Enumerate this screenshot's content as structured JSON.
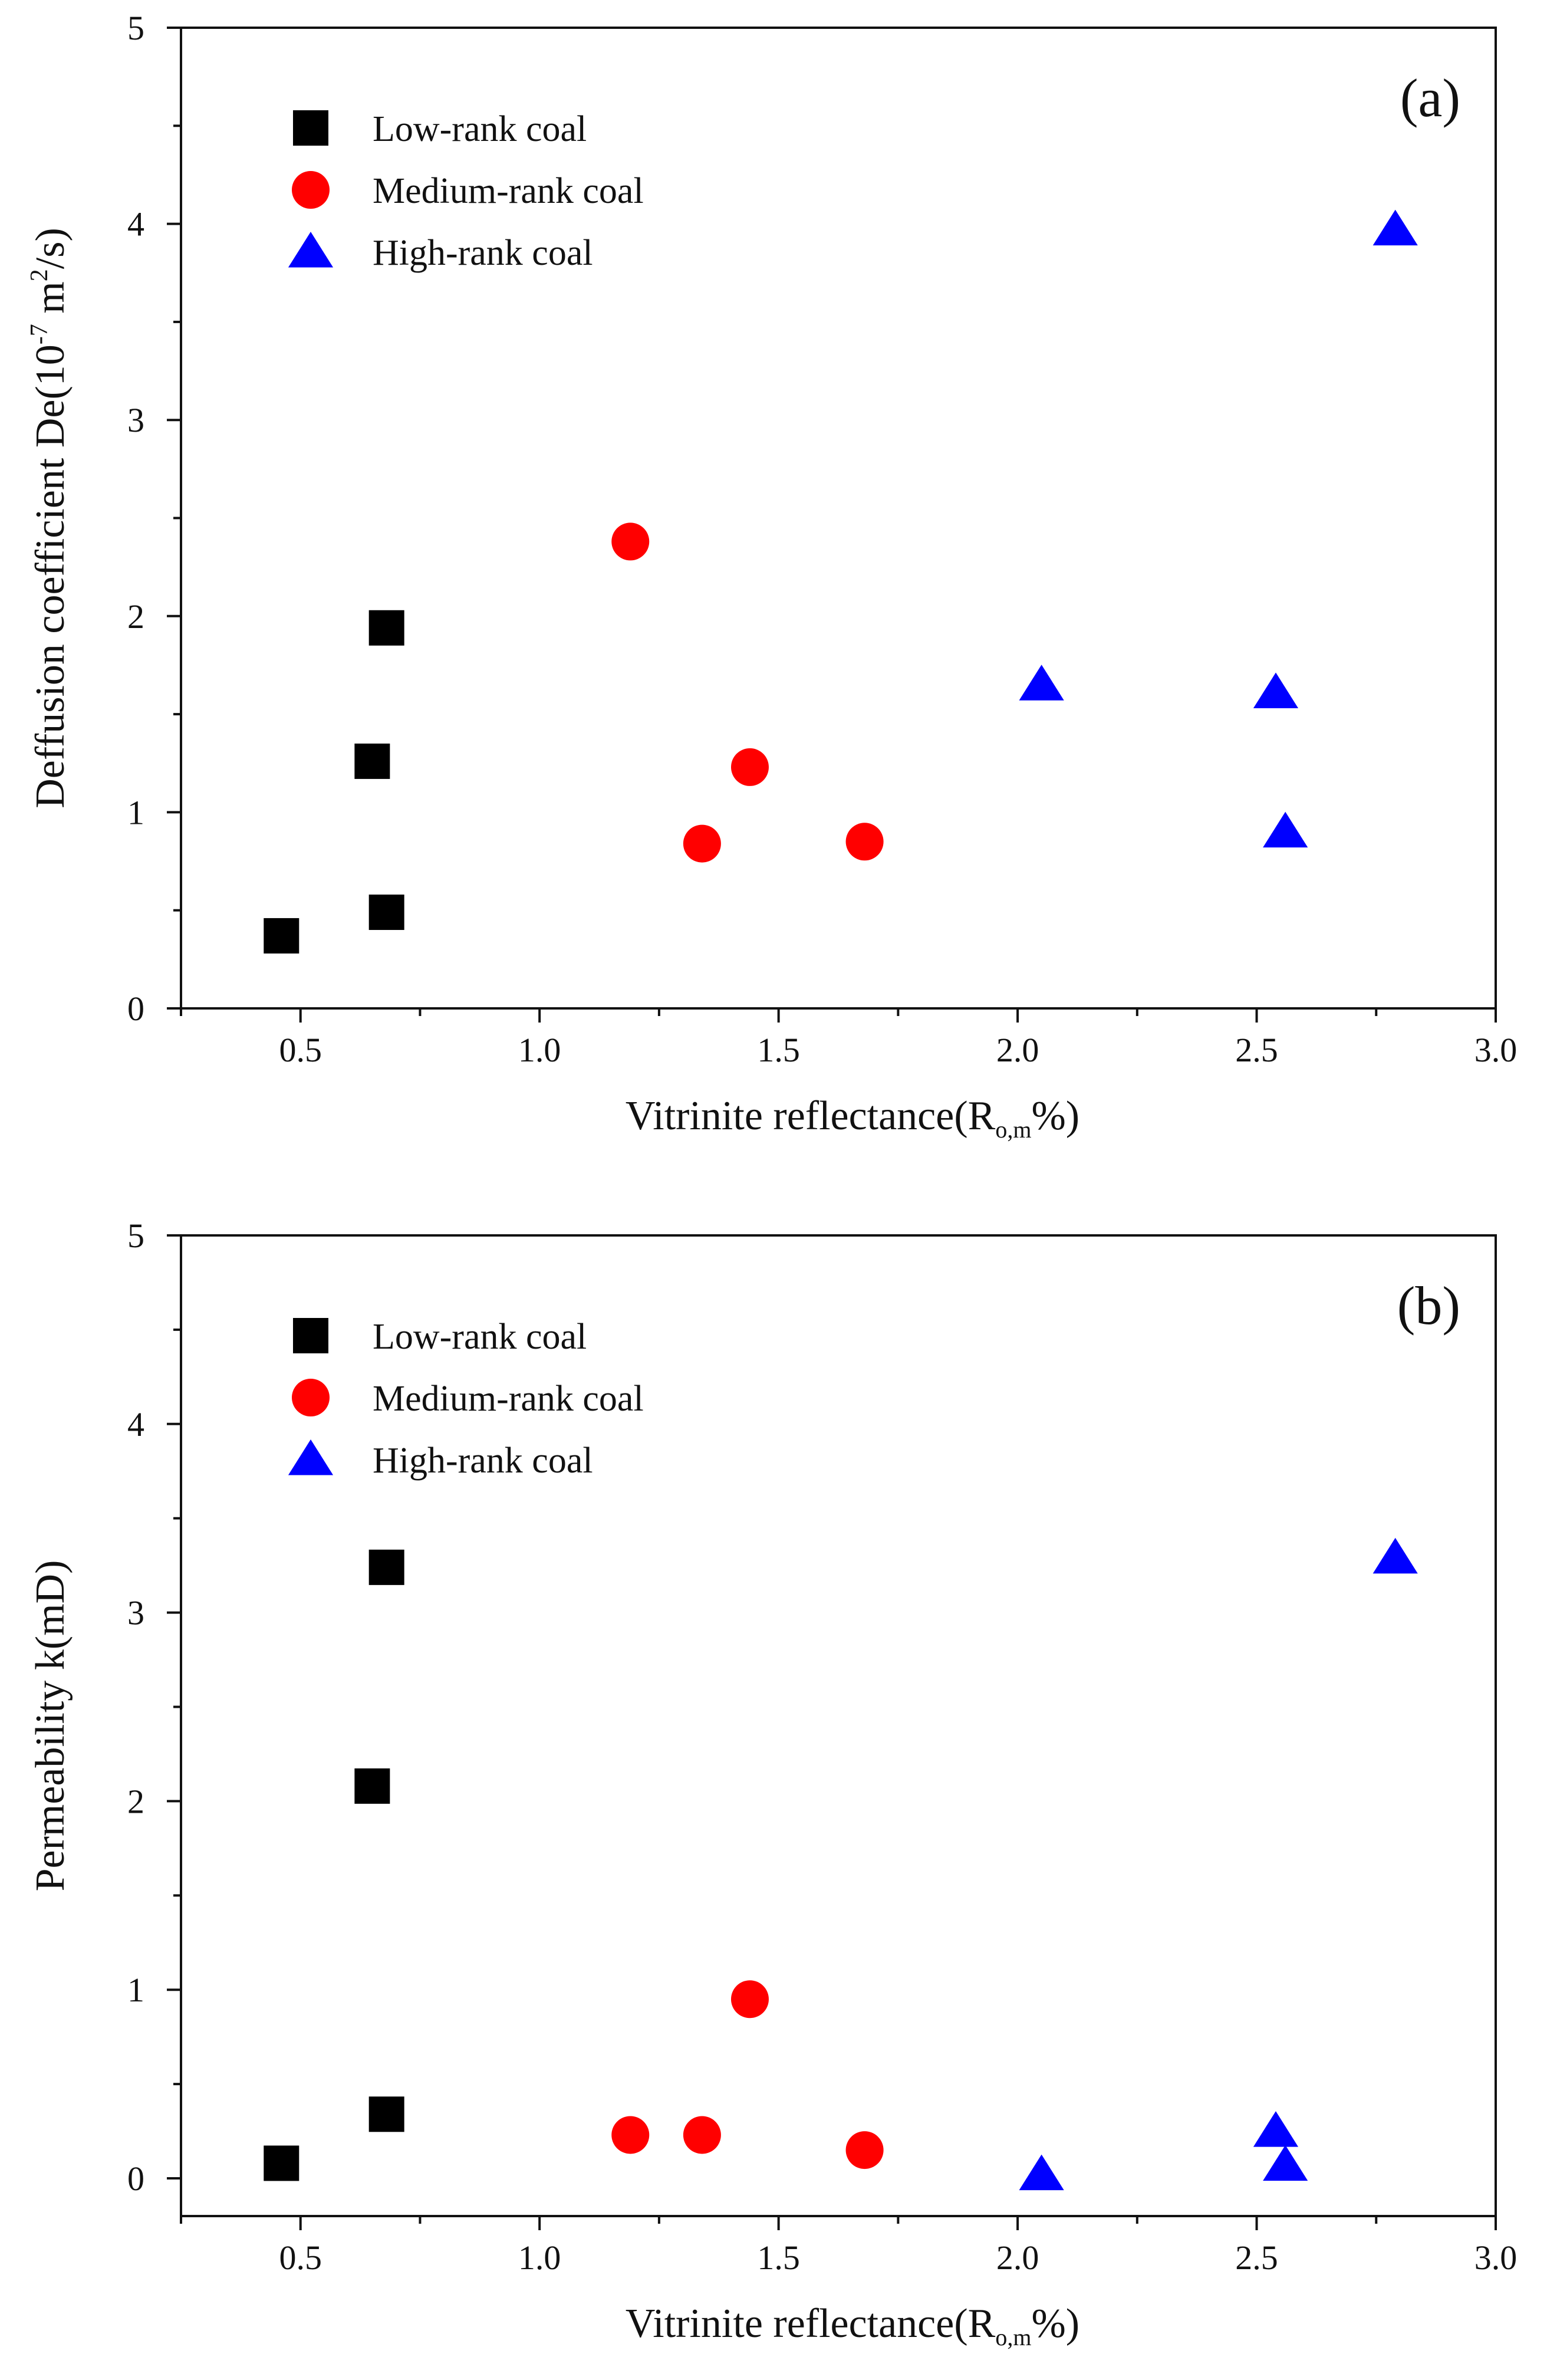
{
  "colors": {
    "axis": "#111111",
    "low_rank": "#000000",
    "medium_rank": "#ff0000",
    "high_rank": "#0000ff"
  },
  "chart_data": [
    {
      "type": "scatter",
      "panel_label": "(a)",
      "xlabel": {
        "prefix": "Vitrinite reflectance(R",
        "sub": "o,m",
        "suffix": "%)"
      },
      "ylabel": {
        "prefix": "Deffusion coefficient De(10",
        "sup1": "-7",
        "mid": " m",
        "sup2": "2",
        "suffix": "/s)"
      },
      "xlim": [
        0.25,
        3.0
      ],
      "ylim": [
        0,
        5
      ],
      "x_ticks": [
        0.5,
        1.0,
        1.5,
        2.0,
        2.5,
        3.0
      ],
      "x_tick_labels": [
        "0.5",
        "1.0",
        "1.5",
        "2.0",
        "2.5",
        "3.0"
      ],
      "y_ticks": [
        0,
        1,
        2,
        3,
        4,
        5
      ],
      "y_tick_labels": [
        "0",
        "1",
        "2",
        "3",
        "4",
        "5"
      ],
      "legend_position": "top-left",
      "series": [
        {
          "name": "Low-rank coal",
          "marker": "square",
          "color": "#000000",
          "x": [
            0.46,
            0.65,
            0.68,
            0.68
          ],
          "y": [
            0.37,
            1.26,
            1.94,
            0.49
          ]
        },
        {
          "name": "Medium-rank coal",
          "marker": "circle",
          "color": "#ff0000",
          "x": [
            1.19,
            1.34,
            1.44,
            1.68
          ],
          "y": [
            2.38,
            0.84,
            1.23,
            0.85
          ]
        },
        {
          "name": "High-rank coal",
          "marker": "triangle",
          "color": "#0000ff",
          "x": [
            2.05,
            2.54,
            2.56,
            2.79
          ],
          "y": [
            1.65,
            1.61,
            0.9,
            3.97
          ]
        }
      ]
    },
    {
      "type": "scatter",
      "panel_label": "(b)",
      "xlabel": {
        "prefix": "Vitrinite reflectance(R",
        "sub": "o,m",
        "suffix": "%)"
      },
      "ylabel": {
        "prefix": "Permeability k(mD)"
      },
      "xlim": [
        0.25,
        3.0
      ],
      "ylim": [
        -0.2,
        5
      ],
      "x_ticks": [
        0.5,
        1.0,
        1.5,
        2.0,
        2.5,
        3.0
      ],
      "x_tick_labels": [
        "0.5",
        "1.0",
        "1.5",
        "2.0",
        "2.5",
        "3.0"
      ],
      "y_ticks": [
        0,
        1,
        2,
        3,
        4,
        5
      ],
      "y_tick_labels": [
        "0",
        "1",
        "2",
        "3",
        "4",
        "5"
      ],
      "legend_position": "top-left",
      "series": [
        {
          "name": "Low-rank coal",
          "marker": "square",
          "color": "#000000",
          "x": [
            0.46,
            0.65,
            0.68,
            0.68
          ],
          "y": [
            0.08,
            2.08,
            3.24,
            0.34
          ]
        },
        {
          "name": "Medium-rank coal",
          "marker": "circle",
          "color": "#ff0000",
          "x": [
            1.19,
            1.34,
            1.44,
            1.68
          ],
          "y": [
            0.23,
            0.23,
            0.95,
            0.15
          ]
        },
        {
          "name": "High-rank coal",
          "marker": "triangle",
          "color": "#0000ff",
          "x": [
            2.05,
            2.54,
            2.56,
            2.79
          ],
          "y": [
            0.02,
            0.25,
            0.07,
            3.29
          ]
        }
      ]
    }
  ]
}
